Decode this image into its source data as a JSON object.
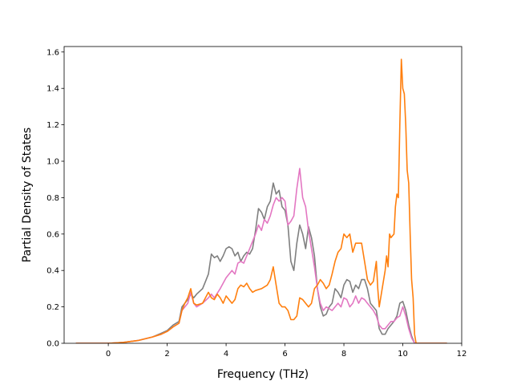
{
  "chart_data": {
    "type": "line",
    "title": "",
    "xlabel": "Frequency (THz)",
    "ylabel": "Partial Density of States",
    "xlim": [
      -1.5,
      12.0
    ],
    "ylim": [
      0.0,
      1.63
    ],
    "xticks": [
      0,
      2,
      4,
      6,
      8,
      10,
      12
    ],
    "yticks": [
      0.0,
      0.2,
      0.4,
      0.6,
      0.8,
      1.0,
      1.2,
      1.4,
      1.6
    ],
    "xtick_labels": [
      "0",
      "2",
      "4",
      "6",
      "8",
      "10",
      "12"
    ],
    "ytick_labels": [
      "0.0",
      "0.2",
      "0.4",
      "0.6",
      "0.8",
      "1.0",
      "1.2",
      "1.4",
      "1.6"
    ],
    "grid": false,
    "legend": "none",
    "series": [
      {
        "color": "#7f7f7f",
        "points": [
          [
            -1.1,
            0.0
          ],
          [
            0.0,
            0.0
          ],
          [
            0.5,
            0.005
          ],
          [
            1.0,
            0.015
          ],
          [
            1.5,
            0.035
          ],
          [
            1.8,
            0.055
          ],
          [
            2.0,
            0.07
          ],
          [
            2.2,
            0.1
          ],
          [
            2.4,
            0.12
          ],
          [
            2.5,
            0.2
          ],
          [
            2.7,
            0.24
          ],
          [
            2.8,
            0.27
          ],
          [
            2.9,
            0.25
          ],
          [
            3.0,
            0.27
          ],
          [
            3.2,
            0.3
          ],
          [
            3.3,
            0.34
          ],
          [
            3.4,
            0.38
          ],
          [
            3.5,
            0.49
          ],
          [
            3.6,
            0.47
          ],
          [
            3.7,
            0.48
          ],
          [
            3.8,
            0.45
          ],
          [
            3.9,
            0.48
          ],
          [
            4.0,
            0.52
          ],
          [
            4.1,
            0.53
          ],
          [
            4.2,
            0.52
          ],
          [
            4.3,
            0.48
          ],
          [
            4.4,
            0.5
          ],
          [
            4.5,
            0.45
          ],
          [
            4.6,
            0.48
          ],
          [
            4.7,
            0.5
          ],
          [
            4.8,
            0.49
          ],
          [
            4.9,
            0.52
          ],
          [
            5.0,
            0.62
          ],
          [
            5.1,
            0.74
          ],
          [
            5.2,
            0.72
          ],
          [
            5.3,
            0.68
          ],
          [
            5.4,
            0.75
          ],
          [
            5.5,
            0.78
          ],
          [
            5.6,
            0.88
          ],
          [
            5.7,
            0.82
          ],
          [
            5.8,
            0.84
          ],
          [
            5.9,
            0.75
          ],
          [
            6.0,
            0.73
          ],
          [
            6.1,
            0.65
          ],
          [
            6.2,
            0.45
          ],
          [
            6.3,
            0.4
          ],
          [
            6.4,
            0.55
          ],
          [
            6.5,
            0.65
          ],
          [
            6.6,
            0.6
          ],
          [
            6.7,
            0.52
          ],
          [
            6.8,
            0.64
          ],
          [
            6.9,
            0.58
          ],
          [
            7.0,
            0.48
          ],
          [
            7.1,
            0.3
          ],
          [
            7.2,
            0.2
          ],
          [
            7.3,
            0.15
          ],
          [
            7.4,
            0.16
          ],
          [
            7.5,
            0.2
          ],
          [
            7.6,
            0.22
          ],
          [
            7.7,
            0.3
          ],
          [
            7.8,
            0.28
          ],
          [
            7.9,
            0.25
          ],
          [
            8.0,
            0.32
          ],
          [
            8.1,
            0.35
          ],
          [
            8.2,
            0.34
          ],
          [
            8.3,
            0.28
          ],
          [
            8.4,
            0.32
          ],
          [
            8.5,
            0.3
          ],
          [
            8.6,
            0.35
          ],
          [
            8.7,
            0.35
          ],
          [
            8.8,
            0.3
          ],
          [
            8.9,
            0.22
          ],
          [
            9.0,
            0.2
          ],
          [
            9.1,
            0.18
          ],
          [
            9.2,
            0.08
          ],
          [
            9.3,
            0.05
          ],
          [
            9.4,
            0.05
          ],
          [
            9.5,
            0.08
          ],
          [
            9.6,
            0.1
          ],
          [
            9.7,
            0.12
          ],
          [
            9.8,
            0.15
          ],
          [
            9.9,
            0.22
          ],
          [
            10.0,
            0.23
          ],
          [
            10.1,
            0.18
          ],
          [
            10.2,
            0.1
          ],
          [
            10.3,
            0.04
          ],
          [
            10.4,
            0.0
          ],
          [
            11.5,
            0.0
          ]
        ]
      },
      {
        "color": "#e377c2",
        "points": [
          [
            -1.1,
            0.0
          ],
          [
            0.0,
            0.0
          ],
          [
            0.5,
            0.005
          ],
          [
            1.0,
            0.015
          ],
          [
            1.5,
            0.035
          ],
          [
            1.8,
            0.05
          ],
          [
            2.0,
            0.065
          ],
          [
            2.2,
            0.09
          ],
          [
            2.4,
            0.11
          ],
          [
            2.5,
            0.18
          ],
          [
            2.7,
            0.22
          ],
          [
            2.8,
            0.28
          ],
          [
            2.9,
            0.22
          ],
          [
            3.0,
            0.2
          ],
          [
            3.2,
            0.22
          ],
          [
            3.4,
            0.25
          ],
          [
            3.5,
            0.27
          ],
          [
            3.6,
            0.25
          ],
          [
            3.8,
            0.3
          ],
          [
            4.0,
            0.36
          ],
          [
            4.2,
            0.4
          ],
          [
            4.3,
            0.38
          ],
          [
            4.4,
            0.44
          ],
          [
            4.5,
            0.45
          ],
          [
            4.6,
            0.44
          ],
          [
            4.7,
            0.48
          ],
          [
            4.8,
            0.52
          ],
          [
            4.9,
            0.56
          ],
          [
            5.0,
            0.6
          ],
          [
            5.1,
            0.65
          ],
          [
            5.2,
            0.62
          ],
          [
            5.3,
            0.68
          ],
          [
            5.4,
            0.66
          ],
          [
            5.5,
            0.7
          ],
          [
            5.6,
            0.76
          ],
          [
            5.7,
            0.8
          ],
          [
            5.8,
            0.78
          ],
          [
            5.9,
            0.8
          ],
          [
            6.0,
            0.78
          ],
          [
            6.1,
            0.65
          ],
          [
            6.2,
            0.67
          ],
          [
            6.3,
            0.7
          ],
          [
            6.4,
            0.85
          ],
          [
            6.5,
            0.96
          ],
          [
            6.6,
            0.8
          ],
          [
            6.7,
            0.75
          ],
          [
            6.8,
            0.62
          ],
          [
            6.9,
            0.52
          ],
          [
            7.0,
            0.42
          ],
          [
            7.1,
            0.3
          ],
          [
            7.2,
            0.22
          ],
          [
            7.3,
            0.18
          ],
          [
            7.4,
            0.2
          ],
          [
            7.5,
            0.19
          ],
          [
            7.6,
            0.18
          ],
          [
            7.7,
            0.2
          ],
          [
            7.8,
            0.22
          ],
          [
            7.9,
            0.2
          ],
          [
            8.0,
            0.25
          ],
          [
            8.1,
            0.24
          ],
          [
            8.2,
            0.2
          ],
          [
            8.3,
            0.22
          ],
          [
            8.4,
            0.26
          ],
          [
            8.5,
            0.22
          ],
          [
            8.6,
            0.25
          ],
          [
            8.7,
            0.24
          ],
          [
            8.8,
            0.22
          ],
          [
            8.9,
            0.2
          ],
          [
            9.0,
            0.18
          ],
          [
            9.1,
            0.15
          ],
          [
            9.2,
            0.1
          ],
          [
            9.3,
            0.08
          ],
          [
            9.4,
            0.08
          ],
          [
            9.5,
            0.1
          ],
          [
            9.6,
            0.12
          ],
          [
            9.7,
            0.12
          ],
          [
            9.8,
            0.14
          ],
          [
            9.9,
            0.15
          ],
          [
            10.0,
            0.2
          ],
          [
            10.1,
            0.15
          ],
          [
            10.2,
            0.08
          ],
          [
            10.3,
            0.03
          ],
          [
            10.4,
            0.0
          ],
          [
            11.5,
            0.0
          ]
        ]
      },
      {
        "color": "#ff7f0e",
        "points": [
          [
            -1.1,
            0.0
          ],
          [
            0.0,
            0.0
          ],
          [
            0.5,
            0.005
          ],
          [
            1.0,
            0.015
          ],
          [
            1.5,
            0.035
          ],
          [
            1.8,
            0.05
          ],
          [
            2.0,
            0.065
          ],
          [
            2.2,
            0.09
          ],
          [
            2.4,
            0.11
          ],
          [
            2.5,
            0.18
          ],
          [
            2.6,
            0.22
          ],
          [
            2.7,
            0.25
          ],
          [
            2.8,
            0.3
          ],
          [
            2.9,
            0.22
          ],
          [
            3.0,
            0.21
          ],
          [
            3.2,
            0.22
          ],
          [
            3.4,
            0.28
          ],
          [
            3.5,
            0.25
          ],
          [
            3.6,
            0.24
          ],
          [
            3.7,
            0.27
          ],
          [
            3.8,
            0.25
          ],
          [
            3.9,
            0.22
          ],
          [
            4.0,
            0.26
          ],
          [
            4.1,
            0.24
          ],
          [
            4.2,
            0.22
          ],
          [
            4.3,
            0.24
          ],
          [
            4.4,
            0.3
          ],
          [
            4.5,
            0.32
          ],
          [
            4.6,
            0.31
          ],
          [
            4.7,
            0.33
          ],
          [
            4.8,
            0.3
          ],
          [
            4.9,
            0.28
          ],
          [
            5.0,
            0.29
          ],
          [
            5.2,
            0.3
          ],
          [
            5.4,
            0.32
          ],
          [
            5.5,
            0.35
          ],
          [
            5.6,
            0.42
          ],
          [
            5.7,
            0.32
          ],
          [
            5.8,
            0.22
          ],
          [
            5.9,
            0.2
          ],
          [
            6.0,
            0.2
          ],
          [
            6.1,
            0.18
          ],
          [
            6.2,
            0.13
          ],
          [
            6.3,
            0.13
          ],
          [
            6.4,
            0.15
          ],
          [
            6.5,
            0.25
          ],
          [
            6.6,
            0.24
          ],
          [
            6.7,
            0.22
          ],
          [
            6.8,
            0.2
          ],
          [
            6.9,
            0.22
          ],
          [
            7.0,
            0.3
          ],
          [
            7.1,
            0.32
          ],
          [
            7.2,
            0.35
          ],
          [
            7.3,
            0.33
          ],
          [
            7.4,
            0.3
          ],
          [
            7.5,
            0.32
          ],
          [
            7.6,
            0.38
          ],
          [
            7.7,
            0.45
          ],
          [
            7.8,
            0.5
          ],
          [
            7.9,
            0.52
          ],
          [
            8.0,
            0.6
          ],
          [
            8.1,
            0.58
          ],
          [
            8.2,
            0.6
          ],
          [
            8.3,
            0.5
          ],
          [
            8.4,
            0.55
          ],
          [
            8.5,
            0.55
          ],
          [
            8.6,
            0.55
          ],
          [
            8.7,
            0.45
          ],
          [
            8.8,
            0.35
          ],
          [
            8.9,
            0.32
          ],
          [
            9.0,
            0.34
          ],
          [
            9.1,
            0.45
          ],
          [
            9.15,
            0.3
          ],
          [
            9.2,
            0.2
          ],
          [
            9.3,
            0.3
          ],
          [
            9.4,
            0.4
          ],
          [
            9.45,
            0.48
          ],
          [
            9.5,
            0.42
          ],
          [
            9.55,
            0.6
          ],
          [
            9.6,
            0.58
          ],
          [
            9.7,
            0.6
          ],
          [
            9.75,
            0.75
          ],
          [
            9.8,
            0.82
          ],
          [
            9.85,
            0.8
          ],
          [
            9.9,
            1.2
          ],
          [
            9.95,
            1.56
          ],
          [
            10.0,
            1.4
          ],
          [
            10.05,
            1.37
          ],
          [
            10.1,
            1.2
          ],
          [
            10.15,
            0.95
          ],
          [
            10.2,
            0.88
          ],
          [
            10.25,
            0.6
          ],
          [
            10.3,
            0.35
          ],
          [
            10.35,
            0.25
          ],
          [
            10.4,
            0.05
          ],
          [
            10.45,
            0.0
          ],
          [
            11.5,
            0.0
          ]
        ]
      }
    ]
  }
}
